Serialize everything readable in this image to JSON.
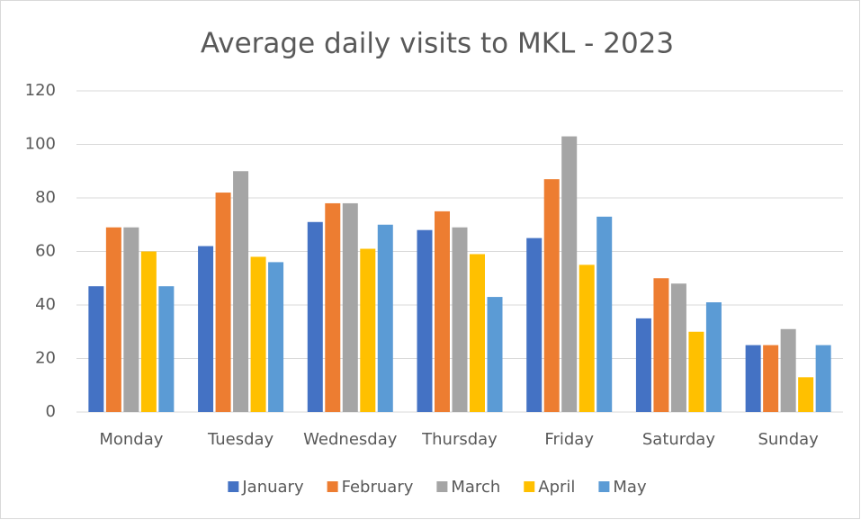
{
  "chart_data": {
    "type": "bar",
    "title": "Average daily visits to MKL - 2023",
    "categories": [
      "Monday",
      "Tuesday",
      "Wednesday",
      "Thursday",
      "Friday",
      "Saturday",
      "Sunday"
    ],
    "series": [
      {
        "name": "January",
        "color": "#4472c4",
        "values": [
          47,
          62,
          71,
          68,
          65,
          35,
          25
        ]
      },
      {
        "name": "February",
        "color": "#ed7d31",
        "values": [
          69,
          82,
          78,
          75,
          87,
          50,
          25
        ]
      },
      {
        "name": "March",
        "color": "#a5a5a5",
        "values": [
          69,
          90,
          78,
          69,
          103,
          48,
          31
        ]
      },
      {
        "name": "April",
        "color": "#ffc000",
        "values": [
          60,
          58,
          61,
          59,
          55,
          30,
          13
        ]
      },
      {
        "name": "May",
        "color": "#5b9bd5",
        "values": [
          47,
          56,
          70,
          43,
          73,
          41,
          25
        ]
      }
    ],
    "ylim": [
      0,
      120
    ],
    "yticks": [
      0,
      20,
      40,
      60,
      80,
      100,
      120
    ],
    "grid": true,
    "legend": "bottom"
  }
}
